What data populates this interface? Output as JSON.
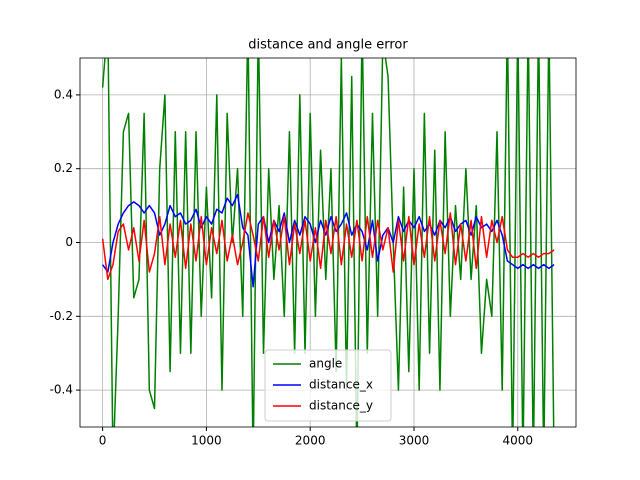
{
  "chart_data": {
    "type": "line",
    "title": "distance and angle error",
    "x": [
      0,
      50,
      100,
      150,
      200,
      250,
      300,
      350,
      400,
      450,
      500,
      550,
      600,
      650,
      700,
      750,
      800,
      850,
      900,
      950,
      1000,
      1050,
      1100,
      1150,
      1200,
      1250,
      1300,
      1350,
      1400,
      1450,
      1500,
      1550,
      1600,
      1650,
      1700,
      1750,
      1800,
      1850,
      1900,
      1950,
      2000,
      2050,
      2100,
      2150,
      2200,
      2250,
      2300,
      2350,
      2400,
      2450,
      2500,
      2550,
      2600,
      2650,
      2700,
      2750,
      2800,
      2850,
      2900,
      2950,
      3000,
      3050,
      3100,
      3150,
      3200,
      3250,
      3300,
      3350,
      3400,
      3450,
      3500,
      3550,
      3600,
      3650,
      3700,
      3750,
      3800,
      3850,
      3900,
      3950,
      4000,
      4050,
      4100,
      4150,
      4200,
      4250,
      4300,
      4350
    ],
    "series": [
      {
        "name": "angle",
        "color": "#008000",
        "values": [
          0.42,
          0.6,
          -0.6,
          -0.2,
          0.3,
          0.35,
          -0.15,
          -0.1,
          0.35,
          -0.4,
          -0.45,
          0.2,
          0.4,
          -0.35,
          0.3,
          -0.3,
          0.3,
          -0.3,
          0.3,
          -0.2,
          0.15,
          -0.15,
          0.4,
          -0.4,
          0.35,
          0.0,
          0.2,
          -0.2,
          0.6,
          -0.6,
          0.6,
          -0.3,
          0.2,
          -0.1,
          0.1,
          -0.2,
          0.3,
          -0.3,
          0.4,
          -0.3,
          0.35,
          -0.2,
          0.25,
          -0.1,
          0.2,
          -0.35,
          0.5,
          -0.4,
          0.45,
          -0.6,
          0.6,
          -0.3,
          0.35,
          -0.2,
          0.55,
          0.45,
          0.0,
          -0.4,
          0.15,
          -0.35,
          0.2,
          -0.4,
          0.35,
          -0.3,
          0.25,
          -0.4,
          0.3,
          -0.2,
          0.1,
          -0.1,
          0.2,
          -0.1,
          0.1,
          -0.3,
          -0.1,
          -0.2,
          0.3,
          -0.4,
          0.6,
          -0.6,
          0.6,
          -0.6,
          0.6,
          -0.6,
          0.6,
          -0.6,
          0.6,
          -0.6
        ]
      },
      {
        "name": "distance_x",
        "color": "#0000ff",
        "values": [
          -0.06,
          -0.08,
          0.0,
          0.05,
          0.08,
          0.1,
          0.11,
          0.1,
          0.08,
          0.1,
          0.08,
          0.02,
          0.05,
          0.1,
          0.07,
          0.08,
          0.05,
          0.06,
          0.09,
          0.04,
          0.07,
          0.05,
          0.09,
          0.08,
          0.12,
          0.1,
          0.13,
          0.04,
          0.02,
          -0.12,
          0.05,
          0.07,
          0.0,
          0.06,
          0.03,
          0.08,
          0.0,
          0.06,
          0.02,
          0.07,
          0.05,
          0.0,
          0.06,
          0.02,
          0.07,
          0.03,
          0.05,
          0.08,
          0.02,
          0.05,
          0.03,
          -0.02,
          0.06,
          -0.05,
          0.02,
          0.04,
          0.0,
          0.07,
          0.03,
          0.06,
          0.04,
          0.07,
          0.03,
          0.05,
          0.02,
          0.06,
          0.04,
          0.07,
          0.03,
          0.05,
          0.06,
          0.02,
          0.07,
          0.04,
          0.05,
          0.03,
          0.06,
          0.02,
          -0.05,
          -0.06,
          -0.07,
          -0.06,
          -0.07,
          -0.06,
          -0.07,
          -0.06,
          -0.07,
          -0.06
        ]
      },
      {
        "name": "distance_y",
        "color": "#ff0000",
        "values": [
          0.01,
          -0.1,
          -0.06,
          0.03,
          0.05,
          -0.02,
          0.04,
          -0.05,
          0.06,
          -0.08,
          -0.03,
          0.07,
          -0.06,
          0.05,
          -0.04,
          0.06,
          -0.07,
          0.05,
          -0.05,
          0.07,
          -0.06,
          0.04,
          -0.03,
          0.06,
          -0.05,
          0.02,
          -0.06,
          0.0,
          0.08,
          0.02,
          -0.05,
          0.07,
          -0.04,
          0.06,
          -0.02,
          0.07,
          -0.06,
          0.05,
          -0.03,
          0.06,
          -0.05,
          0.04,
          -0.07,
          0.06,
          -0.03,
          0.07,
          -0.06,
          0.05,
          -0.04,
          0.06,
          -0.05,
          0.07,
          -0.04,
          0.06,
          -0.02,
          0.04,
          -0.08,
          0.06,
          -0.05,
          0.07,
          -0.06,
          0.05,
          -0.04,
          0.07,
          -0.05,
          0.06,
          -0.03,
          0.08,
          -0.06,
          0.05,
          -0.05,
          0.06,
          -0.07,
          0.07,
          -0.04,
          0.06,
          0.0,
          0.07,
          -0.02,
          -0.04,
          -0.04,
          -0.03,
          -0.04,
          -0.03,
          -0.04,
          -0.03,
          -0.03,
          -0.02
        ]
      }
    ],
    "xlim": [
      -218,
      4561
    ],
    "xticks": [
      0,
      1000,
      2000,
      3000,
      4000
    ],
    "ylim": [
      -0.5,
      0.5
    ],
    "yticks": [
      -0.4,
      -0.2,
      0.0,
      0.2,
      0.4
    ],
    "grid": true,
    "legend": "lower center"
  }
}
